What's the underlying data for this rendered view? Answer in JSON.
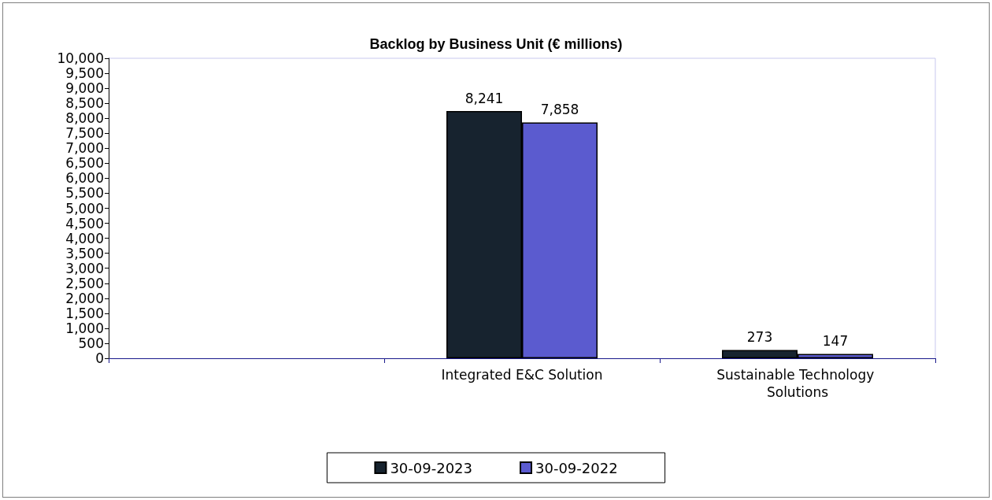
{
  "chart_data": {
    "type": "bar",
    "title": "Backlog by Business Unit (€ millions)",
    "categories": [
      null,
      "Integrated E&C Solution",
      "Sustainable Technology Solutions"
    ],
    "series": [
      {
        "name": "30-09-2023",
        "color": "#17232f",
        "values": [
          null,
          8241,
          273
        ],
        "value_labels": [
          null,
          "8,241",
          "273"
        ]
      },
      {
        "name": "30-09-2022",
        "color": "#5b5bcf",
        "values": [
          null,
          7858,
          147
        ],
        "value_labels": [
          null,
          "7,858",
          "147"
        ]
      }
    ],
    "ylim": [
      0,
      10000
    ],
    "yticks": [
      {
        "value": 0,
        "label": "0"
      },
      {
        "value": 500,
        "label": "500"
      },
      {
        "value": 1000,
        "label": "1,000"
      },
      {
        "value": 1500,
        "label": "1,500"
      },
      {
        "value": 2000,
        "label": "2,000"
      },
      {
        "value": 2500,
        "label": "2,500"
      },
      {
        "value": 3000,
        "label": "3,000"
      },
      {
        "value": 3500,
        "label": "3,500"
      },
      {
        "value": 4000,
        "label": "4,000"
      },
      {
        "value": 4500,
        "label": "4,500"
      },
      {
        "value": 5000,
        "label": "5,000"
      },
      {
        "value": 5500,
        "label": "5,500"
      },
      {
        "value": 6000,
        "label": "6,000"
      },
      {
        "value": 6500,
        "label": "6,500"
      },
      {
        "value": 7000,
        "label": "7,000"
      },
      {
        "value": 7500,
        "label": "7,500"
      },
      {
        "value": 8000,
        "label": "8,000"
      },
      {
        "value": 8500,
        "label": "8,500"
      },
      {
        "value": 9000,
        "label": "9,000"
      },
      {
        "value": 9500,
        "label": "9,500"
      },
      {
        "value": 10000,
        "label": "10,000"
      }
    ],
    "grid": false,
    "legend": "bottom"
  }
}
